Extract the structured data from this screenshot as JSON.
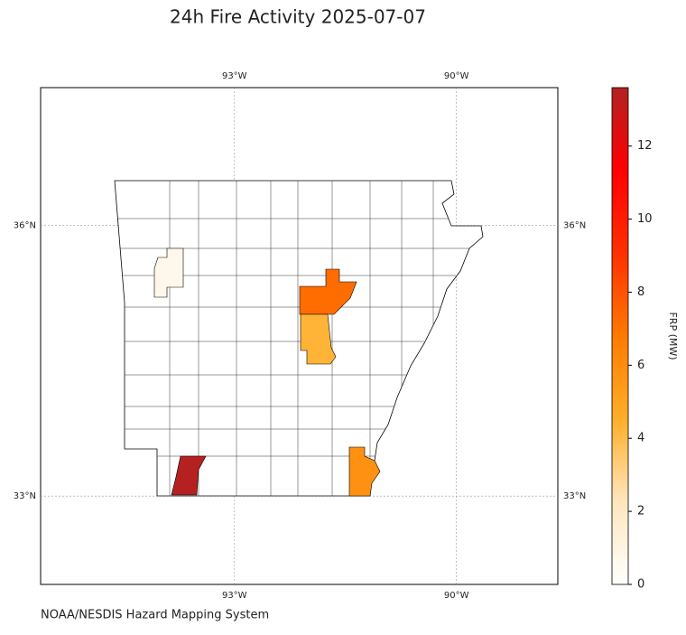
{
  "chart_data": {
    "type": "choropleth",
    "title": "24h Fire Activity 2025-07-07",
    "credit": "NOAA/NESDIS Hazard Mapping System",
    "xlim": [
      -95.62,
      -88.63
    ],
    "ylim": [
      32.02,
      37.53
    ],
    "xticks": [
      {
        "value": -93,
        "label": "93°W"
      },
      {
        "value": -90,
        "label": "90°W"
      }
    ],
    "yticks": [
      {
        "value": 36,
        "label": "36°N"
      },
      {
        "value": 33,
        "label": "33°N"
      }
    ],
    "grid": true,
    "values": [
      0.7,
      7.2,
      4.3,
      13.5,
      5.8
    ],
    "colorbar": {
      "label": "FRP (MW)",
      "clim": [
        0,
        13.6
      ],
      "ticks": [
        0,
        2,
        4,
        6,
        8,
        10,
        12
      ],
      "colors": [
        "#ffffff",
        "#ffe6bd",
        "#ffae28",
        "#ff7a00",
        "#ff3000",
        "#ff0000",
        "#b22222"
      ]
    }
  }
}
